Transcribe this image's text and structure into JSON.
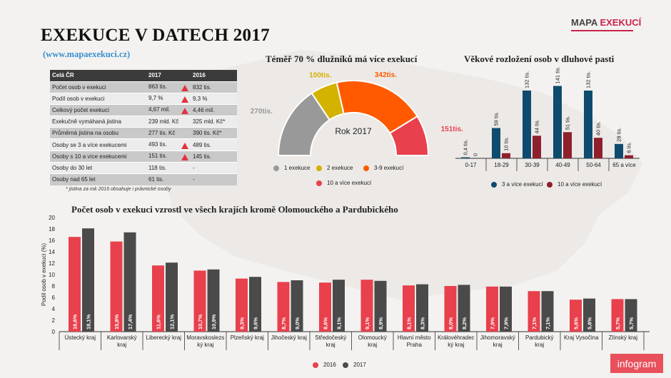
{
  "title": "EXEKUCE V DATECH 2017",
  "url": "(www.mapaexekuci.cz)",
  "brand": {
    "part1": "MAPA",
    "part2": "EXEKUCÍ"
  },
  "colors": {
    "red": "#e8404c",
    "gray": "#999999",
    "yellow": "#d4b200",
    "orange": "#ff5a00",
    "navy": "#0f4b6e",
    "darkred": "#8e1f2c",
    "dark": "#4a4a4a"
  },
  "table": {
    "headers": [
      "Celá ČR",
      "2017",
      "2016"
    ],
    "rows": [
      {
        "label": "Počet osob v exekuci",
        "v2017": "863 tis.",
        "v2016": "832 tis.",
        "up": true
      },
      {
        "label": "Podíl osob v exekuci",
        "v2017": "9,7 %",
        "v2016": "9,3 %",
        "up": true
      },
      {
        "label": "Celkový počet exekucí",
        "v2017": "4,67 mil.",
        "v2016": "4,46 mil.",
        "up": true
      },
      {
        "label": "Exekučně vymáhaná jistina",
        "v2017": "239 mld. Kč",
        "v2016": "325 mld. Kč*",
        "up": false
      },
      {
        "label": "Průměrná jistina na osobu",
        "v2017": "277 tis. Kč",
        "v2016": "390 tis. Kč*",
        "up": false
      },
      {
        "label": "Osoby se 3 a více exekucemi",
        "v2017": "493 tis.",
        "v2016": "489 tis.",
        "up": true
      },
      {
        "label": "Osoby s 10 a více exekucemi",
        "v2017": "151 tis.",
        "v2016": "145 tis.",
        "up": true
      },
      {
        "label": "Osoby do 30 let",
        "v2017": "118 tis.",
        "v2016": "-",
        "up": false
      },
      {
        "label": "Osoby nad 65 let",
        "v2017": "61 tis.",
        "v2016": "-",
        "up": false
      }
    ],
    "note": "* jistina za rok 2016 obsahuje i právnické osoby"
  },
  "chart_data": [
    {
      "type": "pie",
      "title": "Téměř 70 % dlužníků má více exekucí",
      "center_label": "Rok 2017",
      "categories": [
        "1 exekuce",
        "2 exekuce",
        "3-9 exekucí",
        "10 a více exekucí"
      ],
      "values": [
        270,
        100,
        342,
        151
      ],
      "data_labels": [
        "270tis.",
        "100tis.",
        "342tis.",
        "151tis."
      ],
      "colors": [
        "#999999",
        "#d4b200",
        "#ff5a00",
        "#e8404c"
      ]
    },
    {
      "type": "bar",
      "title": "Věkové rozložení osob v dluhové pasti",
      "categories": [
        "0-17",
        "18-29",
        "30-39",
        "40-49",
        "50-64",
        "65 a více"
      ],
      "series": [
        {
          "name": "3 a více exekucí",
          "values": [
            0.4,
            59,
            132,
            141,
            132,
            28
          ],
          "labels": [
            "0,4 tis.",
            "59 tis.",
            "132 tis.",
            "141 tis.",
            "132 tis.",
            "28 tis."
          ],
          "color": "#0f4b6e"
        },
        {
          "name": "10 a více exekucí",
          "values": [
            0,
            10,
            44,
            51,
            40,
            6
          ],
          "labels": [
            "0",
            "10 tis.",
            "44 tis.",
            "51 tis.",
            "40 tis.",
            "6 tis."
          ],
          "color": "#8e1f2c"
        }
      ],
      "ylim": [
        0,
        150
      ]
    },
    {
      "type": "bar",
      "title": "Počet osob v exekuci vzrostl ve všech krajích kromě Olomouckého a Pardubického",
      "ylabel": "Podíl osob v exekuci (%)",
      "ylim": [
        0,
        20
      ],
      "yticks": [
        0,
        2,
        4,
        6,
        8,
        10,
        12,
        14,
        16,
        18,
        20
      ],
      "categories": [
        [
          "Ústecký kraj"
        ],
        [
          "Karlovarský",
          "kraj"
        ],
        [
          "Liberecký kraj"
        ],
        [
          "Moravskoslezs",
          "ký kraj"
        ],
        [
          "Plzeňský kraj"
        ],
        [
          "Jihočeský kraj"
        ],
        [
          "Středočeský",
          "kraj"
        ],
        [
          "Olomoucký",
          "kraj"
        ],
        [
          "Hlavní město",
          "Praha"
        ],
        [
          "Královéhradec",
          "ký kraj"
        ],
        [
          "Jihomoravský",
          "kraj"
        ],
        [
          "Pardubický",
          "kraj"
        ],
        [
          "Kraj Vysočina"
        ],
        [
          "Zlínský kraj"
        ]
      ],
      "series": [
        {
          "name": "2016",
          "color": "#e8404c",
          "values": [
            16.6,
            15.8,
            11.6,
            10.7,
            9.3,
            8.7,
            8.6,
            9.1,
            8.1,
            8.0,
            7.9,
            7.1,
            5.6,
            5.7
          ],
          "labels": [
            "16,6%",
            "15,8%",
            "11,6%",
            "10,7%",
            "9,3%",
            "8,7%",
            "8,6%",
            "9,1%",
            "8,1%",
            "8,0%",
            "7,9%",
            "7,1%",
            "5,6%",
            "5,7%"
          ]
        },
        {
          "name": "2017",
          "color": "#4a4a4a",
          "values": [
            18.1,
            17.4,
            12.1,
            10.9,
            9.6,
            9.0,
            9.1,
            8.9,
            8.3,
            8.2,
            7.9,
            7.1,
            5.8,
            5.7
          ],
          "labels": [
            "18,1%",
            "17,4%",
            "12,1%",
            "10,9%",
            "9,6%",
            "9,0%",
            "9,1%",
            "8,9%",
            "8,3%",
            "8,2%",
            "7,9%",
            "7,1%",
            "5,8%",
            "5,7%"
          ]
        }
      ]
    }
  ],
  "footer": {
    "infogram": "infogram"
  }
}
